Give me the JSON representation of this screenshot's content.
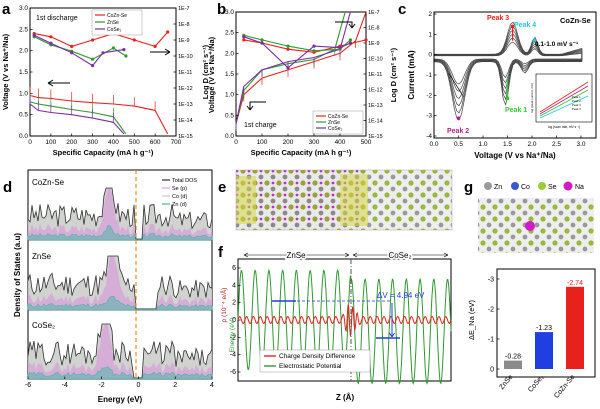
{
  "colors": {
    "cozn": "#e8211c",
    "znse": "#2e9a2e",
    "cose": "#7a2ca8",
    "tdos": "#303030",
    "se": "#d7a6d8",
    "co": "#c8cbc8",
    "zn": "#44b8a8",
    "cv": "#444444",
    "blue": "#1f3fe0",
    "gray": "#8a8a8a",
    "orange": "#f08a24",
    "cyan": "#21c7d9",
    "green": "#2ec82e"
  },
  "panels": {
    "a": {
      "label": "a",
      "annotation": "1st discharge",
      "legend": [
        "CoZn-Se",
        "ZnSe",
        "CoSe₂"
      ],
      "xlabel": "Specific Capacity (mA h g⁻¹)",
      "ylabel_left": "Voltage (V vs Na⁺/Na)",
      "ylabel_right": "Log D (cm² s⁻¹)",
      "xticks": [
        "0",
        "100",
        "200",
        "300",
        "400",
        "500",
        "600",
        "700"
      ],
      "yticks_left": [
        "0.0",
        "0.5",
        "1.0",
        "1.5",
        "2.0",
        "2.5",
        "3.0"
      ],
      "yticks_right": [
        "1E-7",
        "1E-8",
        "1E-9",
        "1E-10",
        "1E-11",
        "1E-12",
        "1E-13",
        "1E-14",
        "1E-15"
      ]
    },
    "b": {
      "label": "b",
      "annotation": "1st charge",
      "legend": [
        "CoZn-Se",
        "ZnSe",
        "CoSe₂"
      ],
      "xlabel": "Specific Capacity (mA h g⁻¹)",
      "ylabel_left": "Voltage (V vs Na⁺/Na)",
      "ylabel_right": "Log D (cm² s⁻¹)",
      "xticks": [
        "0",
        "100",
        "200",
        "300",
        "400",
        "500"
      ],
      "yticks_left": [
        "0.0",
        "0.5",
        "1.0",
        "1.5",
        "2.0",
        "2.5",
        "3.0"
      ],
      "yticks_right": [
        "1E-7",
        "1E-8",
        "1E-9",
        "1E-10",
        "1E-11",
        "1E-12",
        "1E-13",
        "1E-14",
        "1E-15"
      ]
    },
    "c": {
      "label": "c",
      "title": "CoZn-Se",
      "peaks": [
        "Peak 1",
        "Peak 2",
        "Peak 3",
        "Peak 4"
      ],
      "rate_label": "0.1-1.0 mV s⁻¹",
      "xlabel": "Voltage (V vs Na⁺/Na)",
      "ylabel": "Current (mA)",
      "xticks": [
        "0.0",
        "0.5",
        "1.0",
        "1.5",
        "2.0",
        "2.5",
        "3.0"
      ],
      "yticks": [
        "2",
        "1",
        "0",
        "-1",
        "-2",
        "-3",
        "-4"
      ],
      "inset_xlabel": "log (scan rate, mV s⁻¹)",
      "inset_ylabel": "log (peak current, mA)",
      "inset_legend": [
        "Peak 1",
        "Peak 2",
        "Peak 3",
        "Peak 4"
      ]
    },
    "d": {
      "label": "d",
      "subpanels": [
        "CoZn-Se",
        "ZnSe",
        "CoSe₂"
      ],
      "legend": [
        "Total DOS",
        "Se (p)",
        "Co (d)",
        "Zn (d)"
      ],
      "xlabel": "Energy (eV)",
      "ylabel": "Density of States (a.u)",
      "xticks": [
        "-6",
        "-4",
        "-2",
        "0",
        "2",
        "4"
      ]
    },
    "e": {
      "label": "e"
    },
    "f": {
      "label": "f",
      "left_region": "ZnSe",
      "right_region": "CoSe₂",
      "delta_v": "ΔV = 4.94 eV",
      "legend": [
        "Charge Density Difference",
        "Electrostatic Potential"
      ],
      "xlabel": "Z (Å)",
      "ylabel_left": "ρ (10⁻⁴ e/Å)",
      "ylabel_right": "Energy (eV)",
      "yticks": [
        "6",
        "4",
        "2",
        "0",
        "-2",
        "-4",
        "-6"
      ]
    },
    "g": {
      "label": "g",
      "legend": [
        "Zn",
        "Co",
        "Se",
        "Na"
      ],
      "ylabel": "ΔE_Na (eV)",
      "yticks": [
        "-3",
        "-2",
        "-1",
        "0"
      ]
    }
  },
  "chart_data": [
    {
      "panel": "a",
      "type": "line",
      "title": "1st discharge",
      "xlabel": "Specific Capacity (mA h g⁻¹)",
      "ylabel": "Voltage (V vs Na⁺/Na)",
      "xlim": [
        0,
        700
      ],
      "ylim": [
        0,
        3.0
      ],
      "series": [
        {
          "name": "CoZn-Se",
          "x": [
            0,
            40,
            100,
            200,
            300,
            400,
            500,
            600,
            660
          ],
          "y": [
            0.95,
            0.9,
            0.88,
            0.82,
            0.78,
            0.75,
            0.7,
            0.6,
            0.05
          ]
        },
        {
          "name": "ZnSe",
          "x": [
            0,
            40,
            100,
            200,
            300,
            400,
            460
          ],
          "y": [
            0.8,
            0.75,
            0.7,
            0.62,
            0.55,
            0.45,
            0.05
          ]
        },
        {
          "name": "CoSe₂",
          "x": [
            0,
            40,
            100,
            200,
            300,
            400,
            450
          ],
          "y": [
            0.75,
            0.6,
            0.55,
            0.5,
            0.42,
            0.32,
            0.05
          ]
        }
      ],
      "log_d": [
        {
          "name": "CoZn-Se",
          "x": [
            20,
            100,
            200,
            300,
            400,
            500,
            600,
            660
          ],
          "log_d": [
            -8.6,
            -8.8,
            -9.4,
            -9.0,
            -8.6,
            -9.0,
            -9.4,
            -8.5
          ]
        },
        {
          "name": "ZnSe",
          "x": [
            20,
            100,
            200,
            300,
            400,
            460
          ],
          "log_d": [
            -8.8,
            -9.3,
            -9.7,
            -10.2,
            -9.5,
            -10.0
          ]
        },
        {
          "name": "CoSe₂",
          "x": [
            20,
            100,
            200,
            300,
            350,
            450
          ],
          "log_d": [
            -8.7,
            -9.2,
            -9.8,
            -10.6,
            -9.8,
            -9.6
          ]
        }
      ]
    },
    {
      "panel": "b",
      "type": "line",
      "title": "1st charge",
      "xlabel": "Specific Capacity (mA h g⁻¹)",
      "ylabel": "Voltage (V vs Na⁺/Na)",
      "xlim": [
        0,
        500
      ],
      "ylim": [
        0,
        3.0
      ],
      "series": [
        {
          "name": "CoZn-Se",
          "x": [
            0,
            30,
            100,
            200,
            300,
            400,
            460,
            500
          ],
          "y": [
            0.3,
            1.0,
            1.4,
            1.6,
            1.8,
            2.0,
            2.3,
            3.0
          ]
        },
        {
          "name": "ZnSe",
          "x": [
            0,
            30,
            100,
            200,
            300,
            380,
            420
          ],
          "y": [
            0.3,
            1.1,
            1.6,
            1.75,
            1.85,
            2.1,
            3.0
          ]
        },
        {
          "name": "CoSe₂",
          "x": [
            0,
            30,
            100,
            200,
            300,
            400,
            440
          ],
          "y": [
            0.3,
            1.2,
            1.6,
            1.8,
            1.9,
            2.1,
            3.0
          ]
        }
      ],
      "log_d": [
        {
          "name": "CoZn-Se",
          "x": [
            30,
            100,
            200,
            300,
            400,
            500
          ],
          "log_d": [
            -8.8,
            -9.0,
            -9.4,
            -9.6,
            -9.2,
            -8.8
          ]
        },
        {
          "name": "ZnSe",
          "x": [
            30,
            100,
            200,
            300,
            400,
            440
          ],
          "log_d": [
            -8.5,
            -8.8,
            -9.2,
            -9.5,
            -9.4,
            -8.8
          ]
        },
        {
          "name": "CoSe₂",
          "x": [
            30,
            100,
            200,
            300,
            400,
            440
          ],
          "log_d": [
            -8.6,
            -9.0,
            -10.6,
            -9.2,
            -9.3,
            -9.0
          ]
        }
      ]
    },
    {
      "panel": "c",
      "type": "line",
      "title": "CoZn-Se",
      "xlabel": "Voltage (V vs Na⁺/Na)",
      "ylabel": "Current (mA)",
      "xlim": [
        0,
        3.3
      ],
      "ylim": [
        -4.5,
        2.5
      ],
      "scan_rates_mV_s": [
        0.1,
        0.2,
        0.4,
        0.6,
        0.8,
        1.0
      ],
      "peaks": [
        {
          "name": "Peak 1",
          "voltage": 1.5,
          "current": -2.3
        },
        {
          "name": "Peak 2",
          "voltage": 0.5,
          "current": -3.4
        },
        {
          "name": "Peak 3",
          "voltage": 1.6,
          "current": 1.7
        },
        {
          "name": "Peak 4",
          "voltage": 2.05,
          "current": 0.9
        }
      ]
    },
    {
      "panel": "d",
      "type": "area",
      "xlabel": "Energy (eV)",
      "ylabel": "Density of States (a.u)",
      "xlim": [
        -6,
        4
      ],
      "fermi_level": 0,
      "series": [
        "Total DOS",
        "Se (p)",
        "Co (d)",
        "Zn (d)"
      ]
    },
    {
      "panel": "f",
      "type": "line",
      "xlabel": "Z (Å)",
      "ylabel": "ρ (10⁻⁴ e/Å)",
      "ylim": [
        -7,
        7
      ],
      "series": [
        "Charge Density Difference",
        "Electrostatic Potential"
      ],
      "delta_v_eV": 4.94
    },
    {
      "panel": "g",
      "type": "bar",
      "categories": [
        "ZnSe",
        "CoSe₂",
        "CoZn-Se"
      ],
      "values": [
        -0.28,
        -1.23,
        -2.74
      ],
      "labels": [
        "-0.28",
        "-1.23",
        "-2.74"
      ],
      "ylabel": "ΔE_Na (eV)",
      "ylim": [
        -3,
        0
      ]
    }
  ]
}
